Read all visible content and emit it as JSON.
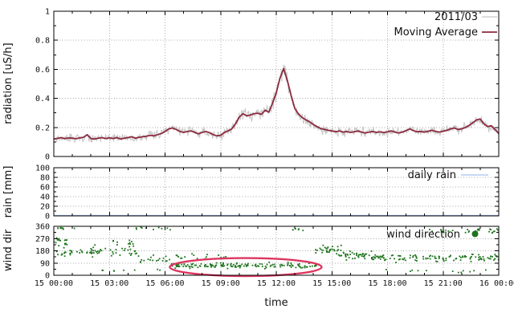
{
  "colors": {
    "raw": "#c6c6c6",
    "moving_average": "#8b2a3e",
    "rain": "#a6c0ee",
    "wind": "#1e741e",
    "ellipse": "#dd3660",
    "grid": "#a8a8a8",
    "frame": "#000000",
    "text": "#111111",
    "background": "#ffffff"
  },
  "x_axis": {
    "label": "time",
    "xlim_hours": [
      0,
      24
    ],
    "tick_hours": [
      0,
      3,
      6,
      9,
      12,
      15,
      18,
      21,
      24
    ],
    "tick_labels": [
      "15 00:00",
      "15 03:00",
      "15 06:00",
      "15 09:00",
      "15 12:00",
      "15 15:00",
      "15 18:00",
      "15 21:00",
      "16 00:00"
    ],
    "minor_tick_interval_hours": 1,
    "grid_hours": [
      3,
      6,
      9,
      12,
      15,
      18,
      21
    ]
  },
  "chart_data": [
    {
      "type": "line",
      "title": "",
      "ylabel": "radiation [uS/h]",
      "ylim": [
        0,
        1
      ],
      "yticks_major": [
        0,
        0.2,
        0.4,
        0.6,
        0.8,
        1
      ],
      "ytick_labels": [
        "0",
        "0.2",
        "0.4",
        "0.6",
        "0.8",
        "1"
      ],
      "yticks_minor": [
        0.1,
        0.3,
        0.5,
        0.7,
        0.9
      ],
      "grid_y": [
        0.2,
        0.4,
        0.6,
        0.8
      ],
      "legend": [
        {
          "label": "2011/03",
          "color": "#c6c6c6",
          "style": "line"
        },
        {
          "label": "Moving Average",
          "color": "#8b2a3e",
          "style": "line"
        }
      ],
      "series": [
        {
          "name": "2011/03",
          "role": "raw-noisy-minute-data",
          "derived_from": "moving-average-plus-noise",
          "noise": {
            "seed": 20110315,
            "samples_per_hour": 30,
            "base": 0.028,
            "factor": 0.11,
            "clamp": [
              0.03,
              0.74
            ]
          }
        },
        {
          "name": "Moving Average",
          "x_start": 0,
          "x_step": 0.2,
          "values": [
            0.12,
            0.125,
            0.13,
            0.122,
            0.128,
            0.126,
            0.122,
            0.128,
            0.132,
            0.15,
            0.124,
            0.12,
            0.126,
            0.13,
            0.124,
            0.128,
            0.124,
            0.13,
            0.12,
            0.126,
            0.13,
            0.136,
            0.126,
            0.132,
            0.136,
            0.14,
            0.146,
            0.142,
            0.15,
            0.158,
            0.172,
            0.19,
            0.196,
            0.186,
            0.172,
            0.166,
            0.172,
            0.176,
            0.166,
            0.156,
            0.166,
            0.172,
            0.164,
            0.15,
            0.142,
            0.146,
            0.166,
            0.176,
            0.19,
            0.225,
            0.27,
            0.295,
            0.28,
            0.285,
            0.295,
            0.298,
            0.29,
            0.318,
            0.305,
            0.368,
            0.44,
            0.54,
            0.605,
            0.52,
            0.42,
            0.33,
            0.292,
            0.268,
            0.252,
            0.238,
            0.22,
            0.205,
            0.192,
            0.186,
            0.18,
            0.176,
            0.17,
            0.176,
            0.168,
            0.172,
            0.166,
            0.17,
            0.176,
            0.168,
            0.162,
            0.168,
            0.172,
            0.166,
            0.17,
            0.164,
            0.17,
            0.176,
            0.168,
            0.162,
            0.168,
            0.178,
            0.19,
            0.178,
            0.17,
            0.172,
            0.168,
            0.174,
            0.18,
            0.172,
            0.168,
            0.174,
            0.18,
            0.19,
            0.196,
            0.186,
            0.19,
            0.2,
            0.214,
            0.232,
            0.252,
            0.258,
            0.225,
            0.205,
            0.212,
            0.185,
            0.158
          ]
        }
      ]
    },
    {
      "type": "line",
      "title": "",
      "ylabel": "rain [mm]",
      "ylim": [
        0,
        100
      ],
      "yticks_major": [
        0,
        20,
        40,
        60,
        80,
        100
      ],
      "ytick_labels": [
        "0",
        "20",
        "40",
        "60",
        "80",
        "100"
      ],
      "yticks_minor": [
        10,
        30,
        50,
        70,
        90
      ],
      "grid_y": [
        20,
        40,
        60,
        80
      ],
      "legend": [
        {
          "label": "daily rain",
          "color": "#a6c0ee",
          "style": "line"
        }
      ],
      "series": [
        {
          "name": "daily rain",
          "x_hours": [
            0,
            24
          ],
          "values": [
            0,
            0
          ]
        }
      ]
    },
    {
      "type": "scatter",
      "title": "",
      "ylabel": "wind dir",
      "ylim": [
        0,
        360
      ],
      "yticks_major": [
        0,
        90,
        180,
        270,
        360
      ],
      "ytick_labels": [
        "0",
        "90",
        "180",
        "270",
        "360"
      ],
      "yticks_minor": [
        45,
        135,
        225,
        315
      ],
      "grid_y": [
        90,
        180,
        270
      ],
      "legend": [
        {
          "label": "wind direction",
          "color": "#1e741e",
          "style": "point"
        }
      ],
      "scatter_generation": {
        "seed": 7341,
        "segments": [
          {
            "t0": 0.0,
            "t1": 0.8,
            "n": 16,
            "mean": 250,
            "spread": 55
          },
          {
            "t0": 0.0,
            "t1": 2.4,
            "n": 30,
            "mean": 170,
            "spread": 45
          },
          {
            "t0": 0.2,
            "t1": 1.2,
            "n": 8,
            "mean": 345,
            "spread": 12
          },
          {
            "t0": 2.0,
            "t1": 4.6,
            "n": 34,
            "mean": 175,
            "spread": 55
          },
          {
            "t0": 3.2,
            "t1": 4.4,
            "n": 12,
            "mean": 235,
            "spread": 35
          },
          {
            "t0": 4.4,
            "t1": 6.3,
            "n": 10,
            "mean": 342,
            "spread": 14
          },
          {
            "t0": 4.6,
            "t1": 6.3,
            "n": 18,
            "mean": 110,
            "spread": 40
          },
          {
            "t0": 2.4,
            "t1": 6.0,
            "n": 8,
            "mean": 30,
            "spread": 22
          },
          {
            "t0": 6.3,
            "t1": 14.2,
            "n": 150,
            "mean": 72,
            "spread": 28
          },
          {
            "t0": 6.5,
            "t1": 9.6,
            "n": 20,
            "mean": 135,
            "spread": 30
          },
          {
            "t0": 12.6,
            "t1": 13.5,
            "n": 6,
            "mean": 335,
            "spread": 18
          },
          {
            "t0": 14.0,
            "t1": 15.7,
            "n": 28,
            "mean": 190,
            "spread": 45
          },
          {
            "t0": 15.2,
            "t1": 17.4,
            "n": 42,
            "mean": 150,
            "spread": 42
          },
          {
            "t0": 17.0,
            "t1": 24.0,
            "n": 115,
            "mean": 128,
            "spread": 38
          },
          {
            "t0": 20.2,
            "t1": 24.0,
            "n": 30,
            "mean": 322,
            "spread": 26
          },
          {
            "t0": 17.5,
            "t1": 23.5,
            "n": 12,
            "mean": 32,
            "spread": 24
          }
        ]
      },
      "annotation_ellipse": {
        "t_center": 10.35,
        "t_radius": 4.1,
        "dir_center": 60,
        "dir_radius": 66,
        "color": "#dd3660",
        "stroke_width": 2.4
      }
    }
  ]
}
